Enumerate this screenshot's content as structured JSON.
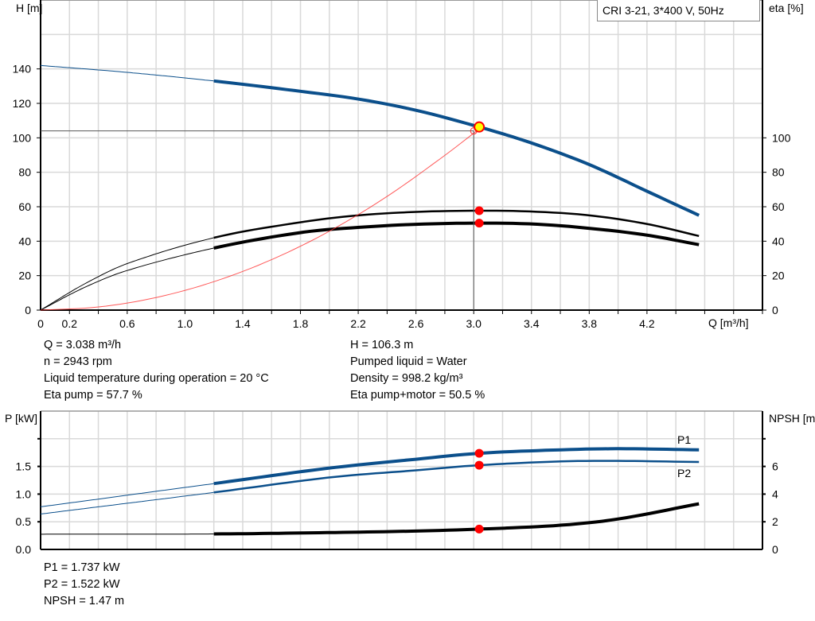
{
  "legend": {
    "text": "CRI 3-21, 3*400 V, 50Hz"
  },
  "colors": {
    "head": "#0b4f8b",
    "power": "#0b4f8b",
    "efficiency": "#000000",
    "npsh": "#000000",
    "system": "#ff3030",
    "marker": "#ff0000",
    "duty_fill": "#ffff00",
    "grid": "#d9d9d9"
  },
  "top_info": {
    "left": [
      "Q = 3.038 m³/h",
      "n = 2943 rpm",
      "Liquid temperature during operation = 20 °C",
      "Eta pump = 57.7 %"
    ],
    "right": [
      "H = 106.3 m",
      "Pumped liquid = Water",
      "Density = 998.2 kg/m³",
      "Eta pump+motor = 50.5 %"
    ]
  },
  "bottom_info": [
    "P1 = 1.737 kW",
    "P2 = 1.522 kW",
    "NPSH = 1.47 m"
  ],
  "chart_data": [
    {
      "type": "line",
      "xlabel": "Q [m³/h]",
      "ylabel": "H [m]",
      "ylabel_right": "eta [%]",
      "xlim": [
        0,
        5.0
      ],
      "ylim": [
        0,
        180
      ],
      "ylim_right": [
        0,
        180
      ],
      "grid": true,
      "x_ticks": [
        "0",
        "0.2",
        "0.6",
        "1.0",
        "1.4",
        "1.8",
        "2.2",
        "2.6",
        "3.0",
        "3.4",
        "3.8",
        "4.2"
      ],
      "y_ticks": [
        "0",
        "20",
        "40",
        "60",
        "80",
        "100",
        "120",
        "140"
      ],
      "y_ticks_right": [
        "0",
        "20",
        "40",
        "60",
        "80",
        "100"
      ],
      "operating_range_start": 1.2,
      "series": [
        {
          "key": "head",
          "x": [
            0,
            0.6,
            1.2,
            1.8,
            2.2,
            2.6,
            3.038,
            3.4,
            3.8,
            4.2,
            4.56
          ],
          "y": [
            142,
            138,
            133,
            127,
            122.5,
            116,
            106.3,
            97,
            84.5,
            69,
            55
          ],
          "width": "thick"
        },
        {
          "key": "eta_pump",
          "x": [
            0,
            0.3,
            0.6,
            1.2,
            1.8,
            2.2,
            2.6,
            3.038,
            3.4,
            3.8,
            4.2,
            4.56
          ],
          "y": [
            0,
            15,
            27,
            42,
            51,
            55,
            57,
            57.7,
            57.2,
            55,
            50,
            43
          ],
          "width": "medium"
        },
        {
          "key": "eta_pump_motor",
          "x": [
            0,
            0.3,
            0.6,
            1.2,
            1.8,
            2.2,
            2.6,
            3.038,
            3.4,
            3.8,
            4.2,
            4.56
          ],
          "y": [
            0,
            13,
            23,
            36,
            45,
            48,
            49.8,
            50.5,
            50,
            47.5,
            43.5,
            38
          ],
          "width": "thick"
        },
        {
          "key": "system",
          "x": [
            0,
            0.4,
            0.8,
            1.2,
            1.6,
            2.0,
            2.4,
            2.8,
            3.02
          ],
          "y": [
            0,
            1.8,
            7.3,
            16.5,
            29.3,
            45.8,
            66,
            89.8,
            104
          ],
          "width": "thin"
        }
      ],
      "duty_point": {
        "q": 3.038,
        "h": 106.3,
        "eta_pump": 57.7,
        "eta_pump_motor": 50.5
      },
      "requested_point": {
        "q": 3.0,
        "h": 104
      }
    },
    {
      "type": "line",
      "ylabel": "P [kW]",
      "ylabel_right": "NPSH [m]",
      "xlim": [
        0,
        5.0
      ],
      "ylim": [
        0,
        2.5
      ],
      "ylim_right": [
        0,
        10
      ],
      "grid": true,
      "y_ticks": [
        "0.0",
        "0.5",
        "1.0",
        "1.5"
      ],
      "y_ticks_right": [
        "0",
        "2",
        "4",
        "6"
      ],
      "operating_range_start": 1.2,
      "series": [
        {
          "key": "P1",
          "name": "P1",
          "axis": "left",
          "x": [
            0,
            1.2,
            2.0,
            2.6,
            3.038,
            3.6,
            4.0,
            4.56
          ],
          "y": [
            0.77,
            1.19,
            1.47,
            1.63,
            1.737,
            1.8,
            1.82,
            1.8
          ],
          "width": "thick"
        },
        {
          "key": "P2",
          "name": "P2",
          "axis": "left",
          "x": [
            0,
            1.2,
            2.0,
            2.6,
            3.038,
            3.6,
            4.0,
            4.56
          ],
          "y": [
            0.64,
            1.03,
            1.3,
            1.43,
            1.522,
            1.59,
            1.6,
            1.58
          ],
          "width": "medium"
        },
        {
          "key": "NPSH",
          "axis": "right",
          "x": [
            0,
            1.2,
            2.0,
            2.6,
            3.038,
            3.6,
            4.0,
            4.56
          ],
          "y": [
            1.1,
            1.12,
            1.22,
            1.33,
            1.47,
            1.75,
            2.2,
            3.3
          ],
          "width": "thick"
        }
      ],
      "duty_point": {
        "q": 3.038,
        "P1": 1.737,
        "P2": 1.522,
        "NPSH": 1.47
      }
    }
  ]
}
